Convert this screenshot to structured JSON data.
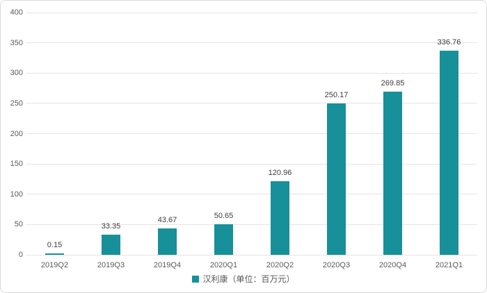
{
  "chart_data": {
    "type": "bar",
    "title": "",
    "xlabel": "",
    "ylabel": "",
    "categories": [
      "2019Q2",
      "2019Q3",
      "2019Q4",
      "2020Q1",
      "2020Q2",
      "2020Q3",
      "2020Q4",
      "2021Q1"
    ],
    "series": [
      {
        "name": "汉利康（单位：百万元）",
        "values": [
          0.15,
          33.35,
          43.67,
          50.65,
          120.96,
          250.17,
          269.85,
          336.76
        ],
        "value_labels": [
          "0.15",
          "33.35",
          "43.67",
          "50.65",
          "120.96",
          "250.17",
          "269.85",
          "336.76"
        ],
        "color": "#17909a"
      }
    ],
    "ylim": [
      0,
      400
    ],
    "yticks": [
      0,
      50,
      100,
      150,
      200,
      250,
      300,
      350,
      400
    ],
    "grid": true,
    "gridline_color": "#e4e4e4",
    "legend_position": "bottom-center",
    "legend": [
      "汉利康（单位：百万元）"
    ]
  }
}
